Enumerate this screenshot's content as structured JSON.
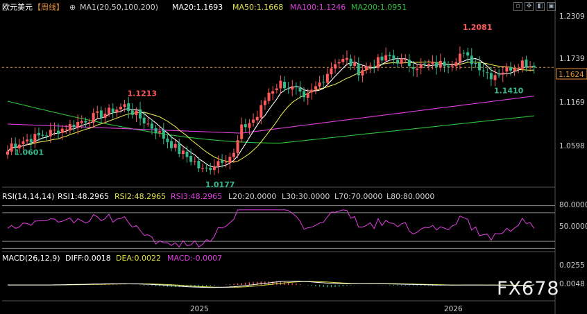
{
  "header": {
    "pair": "欧元美元",
    "period": "【周线】",
    "settings_glyph": "⊕",
    "ma_label": "MA1(20,50,100,200)",
    "ma20": "MA20:1.1693",
    "ma50": "MA50:1.1668",
    "ma100": "MA100:1.1246",
    "ma200": "MA200:1.0951"
  },
  "rsi_header": {
    "name": "RSI(14,14,14)",
    "rsi1": "RSI1:48.2965",
    "rsi2": "RSI2:48.2965",
    "rsi3": "RSI3:48.2965",
    "l20": "L20:20.0000",
    "l30": "L30:30.0000",
    "l70": "L70:70.0000",
    "l80": "L80:80.0000"
  },
  "macd_header": {
    "name": "MACD(26,12,9)",
    "diff": "DIFF:0.0018",
    "dea": "DEA:0.0022",
    "macd": "MACD:-0.0007"
  },
  "watermark": "FX678",
  "colors": {
    "up": "#ff5a5a",
    "down": "#35b98a",
    "ma20": "#ffffff",
    "ma50": "#e3e34a",
    "ma100": "#e23ee2",
    "ma200": "#2ec43a",
    "dash": "#e8933a"
  },
  "chart_data": {
    "type": "candlestick",
    "price_axis": {
      "ticks": [
        "1.2309",
        "1.1739",
        "1.1169",
        "1.0598"
      ],
      "tick_values": [
        1.2309,
        1.1739,
        1.1169,
        1.0598
      ],
      "range": [
        1.0,
        1.25
      ]
    },
    "current_price": "1.1624",
    "x_ticks": [
      "2025",
      "2026"
    ],
    "annotations": [
      {
        "text": "1.0601",
        "value": 1.0601,
        "bar": 1
      },
      {
        "text": "1.1213",
        "value": 1.1213,
        "bar": 30
      },
      {
        "text": "1.0177",
        "value": 1.0177,
        "bar": 50
      },
      {
        "text": "1.2081",
        "value": 1.2081,
        "bar": 116
      },
      {
        "text": "1.1410",
        "value": 1.141,
        "bar": 124
      }
    ],
    "ma_latest": {
      "MA20": 1.1693,
      "MA50": 1.1668,
      "MA100": 1.1246,
      "MA200": 1.0951
    },
    "rsi": {
      "axis_ticks": [
        "80.0000",
        "50.0000"
      ],
      "tick_values": [
        80,
        50
      ],
      "levels": [
        20,
        30,
        70,
        80
      ],
      "latest": 48.2965
    },
    "macd": {
      "axis_ticks": [
        "0.0255",
        "0.0048"
      ],
      "tick_values": [
        0.0255,
        0.0048
      ],
      "diff": 0.0018,
      "dea": 0.0022,
      "hist": -0.0007
    }
  }
}
